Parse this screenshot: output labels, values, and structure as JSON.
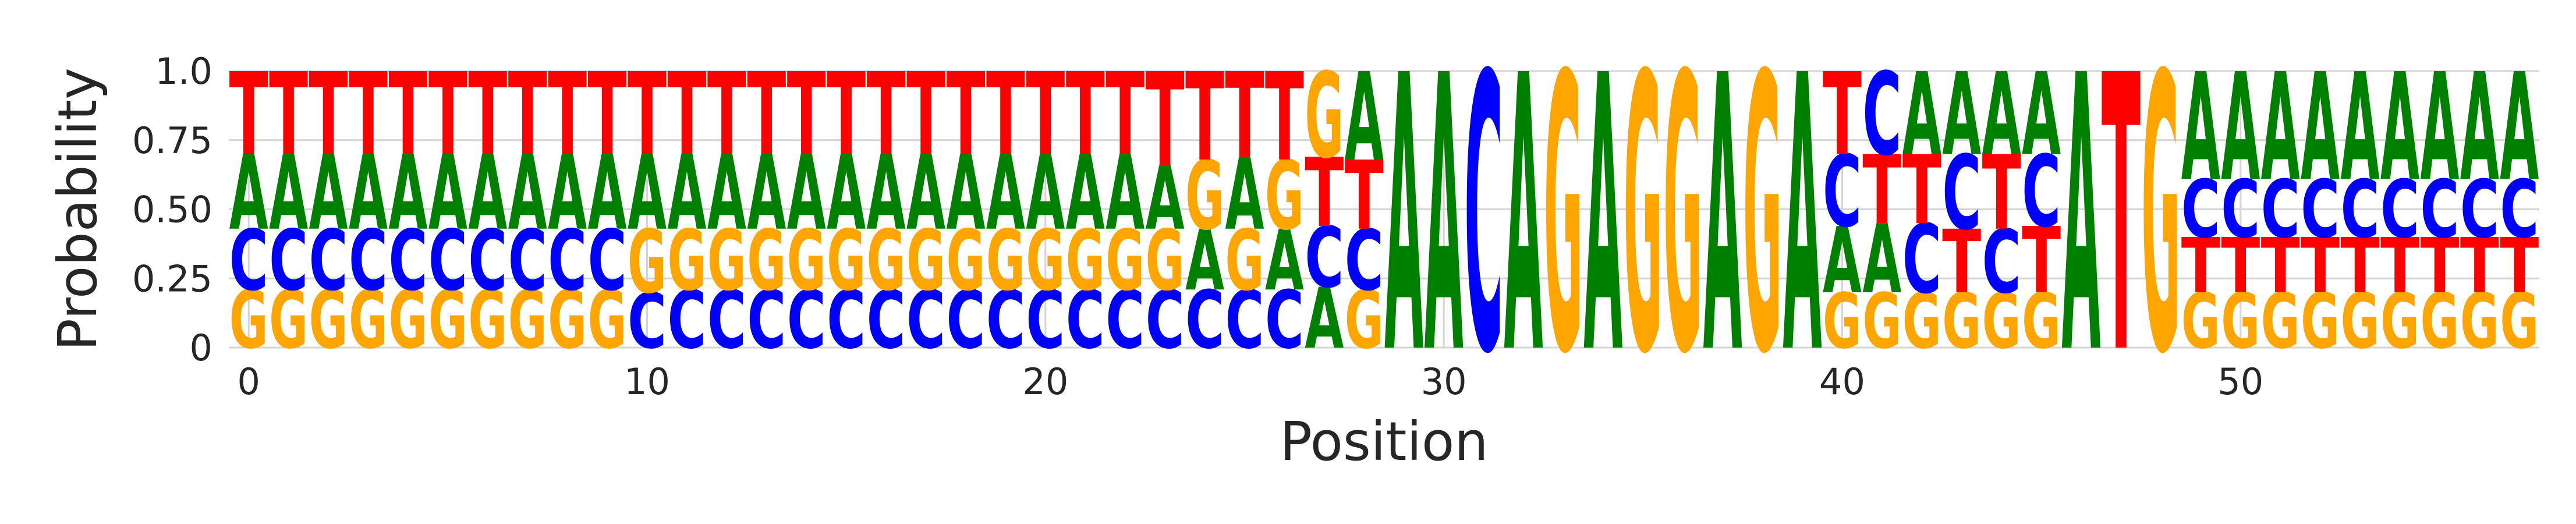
{
  "chart_data": {
    "type": "sequence-logo",
    "title": "",
    "xlabel": "Position",
    "ylabel": "Probability",
    "ylim": [
      0,
      1.0
    ],
    "xlim": [
      -0.5,
      57.5
    ],
    "yticks": [
      0,
      0.25,
      0.5,
      0.75,
      1.0
    ],
    "ytick_labels": [
      "0",
      "0.25",
      "0.50",
      "0.75",
      "1.0"
    ],
    "xticks": [
      0,
      10,
      20,
      30,
      40,
      50
    ],
    "xtick_labels": [
      "0",
      "10",
      "20",
      "30",
      "40",
      "50"
    ],
    "grid": true,
    "colors": {
      "A": "#008000",
      "C": "#0000ff",
      "G": "#ffa500",
      "T": "#ff0000"
    },
    "stack_order": "ascending probability from bottom",
    "positions": [
      {
        "pos": 0,
        "A": 0.27,
        "C": 0.22,
        "G": 0.21,
        "T": 0.3
      },
      {
        "pos": 1,
        "A": 0.27,
        "C": 0.22,
        "G": 0.21,
        "T": 0.3
      },
      {
        "pos": 2,
        "A": 0.27,
        "C": 0.22,
        "G": 0.21,
        "T": 0.3
      },
      {
        "pos": 3,
        "A": 0.27,
        "C": 0.22,
        "G": 0.21,
        "T": 0.3
      },
      {
        "pos": 4,
        "A": 0.27,
        "C": 0.22,
        "G": 0.21,
        "T": 0.3
      },
      {
        "pos": 5,
        "A": 0.27,
        "C": 0.22,
        "G": 0.21,
        "T": 0.3
      },
      {
        "pos": 6,
        "A": 0.27,
        "C": 0.22,
        "G": 0.21,
        "T": 0.3
      },
      {
        "pos": 7,
        "A": 0.27,
        "C": 0.22,
        "G": 0.21,
        "T": 0.3
      },
      {
        "pos": 8,
        "A": 0.27,
        "C": 0.22,
        "G": 0.21,
        "T": 0.3
      },
      {
        "pos": 9,
        "A": 0.27,
        "C": 0.22,
        "G": 0.21,
        "T": 0.3
      },
      {
        "pos": 10,
        "A": 0.27,
        "C": 0.2,
        "G": 0.23,
        "T": 0.3
      },
      {
        "pos": 11,
        "A": 0.27,
        "C": 0.21,
        "G": 0.22,
        "T": 0.3
      },
      {
        "pos": 12,
        "A": 0.27,
        "C": 0.21,
        "G": 0.22,
        "T": 0.3
      },
      {
        "pos": 13,
        "A": 0.27,
        "C": 0.21,
        "G": 0.22,
        "T": 0.3
      },
      {
        "pos": 14,
        "A": 0.27,
        "C": 0.21,
        "G": 0.22,
        "T": 0.3
      },
      {
        "pos": 15,
        "A": 0.27,
        "C": 0.21,
        "G": 0.22,
        "T": 0.3
      },
      {
        "pos": 16,
        "A": 0.27,
        "C": 0.21,
        "G": 0.22,
        "T": 0.3
      },
      {
        "pos": 17,
        "A": 0.27,
        "C": 0.21,
        "G": 0.22,
        "T": 0.3
      },
      {
        "pos": 18,
        "A": 0.27,
        "C": 0.21,
        "G": 0.22,
        "T": 0.3
      },
      {
        "pos": 19,
        "A": 0.27,
        "C": 0.21,
        "G": 0.22,
        "T": 0.3
      },
      {
        "pos": 20,
        "A": 0.27,
        "C": 0.21,
        "G": 0.22,
        "T": 0.3
      },
      {
        "pos": 21,
        "A": 0.27,
        "C": 0.21,
        "G": 0.22,
        "T": 0.3
      },
      {
        "pos": 22,
        "A": 0.27,
        "C": 0.21,
        "G": 0.22,
        "T": 0.3
      },
      {
        "pos": 23,
        "A": 0.23,
        "C": 0.21,
        "G": 0.22,
        "T": 0.34
      },
      {
        "pos": 24,
        "A": 0.22,
        "C": 0.21,
        "G": 0.25,
        "T": 0.32
      },
      {
        "pos": 25,
        "A": 0.26,
        "C": 0.21,
        "G": 0.22,
        "T": 0.31
      },
      {
        "pos": 26,
        "A": 0.22,
        "C": 0.21,
        "G": 0.25,
        "T": 0.32
      },
      {
        "pos": 27,
        "A": 0.22,
        "C": 0.22,
        "G": 0.31,
        "T": 0.25
      },
      {
        "pos": 28,
        "A": 0.32,
        "C": 0.22,
        "G": 0.21,
        "T": 0.25
      },
      {
        "pos": 29,
        "A": 1.0,
        "C": 0,
        "G": 0,
        "T": 0
      },
      {
        "pos": 30,
        "A": 1.0,
        "C": 0,
        "G": 0,
        "T": 0
      },
      {
        "pos": 31,
        "A": 0,
        "C": 1.0,
        "G": 0,
        "T": 0
      },
      {
        "pos": 32,
        "A": 1.0,
        "C": 0,
        "G": 0,
        "T": 0
      },
      {
        "pos": 33,
        "A": 0,
        "C": 0,
        "G": 1.0,
        "T": 0
      },
      {
        "pos": 34,
        "A": 1.0,
        "C": 0,
        "G": 0,
        "T": 0
      },
      {
        "pos": 35,
        "A": 0,
        "C": 0,
        "G": 1.0,
        "T": 0
      },
      {
        "pos": 36,
        "A": 0,
        "C": 0,
        "G": 1.0,
        "T": 0
      },
      {
        "pos": 37,
        "A": 1.0,
        "C": 0,
        "G": 0,
        "T": 0
      },
      {
        "pos": 38,
        "A": 0,
        "C": 0,
        "G": 1.0,
        "T": 0
      },
      {
        "pos": 39,
        "A": 1.0,
        "C": 0,
        "G": 0,
        "T": 0
      },
      {
        "pos": 40,
        "A": 0.24,
        "C": 0.26,
        "G": 0.2,
        "T": 0.3
      },
      {
        "pos": 41,
        "A": 0.25,
        "C": 0.3,
        "G": 0.2,
        "T": 0.25
      },
      {
        "pos": 42,
        "A": 0.3,
        "C": 0.25,
        "G": 0.2,
        "T": 0.25
      },
      {
        "pos": 43,
        "A": 0.3,
        "C": 0.27,
        "G": 0.2,
        "T": 0.23
      },
      {
        "pos": 44,
        "A": 0.3,
        "C": 0.23,
        "G": 0.2,
        "T": 0.27
      },
      {
        "pos": 45,
        "A": 0.3,
        "C": 0.26,
        "G": 0.2,
        "T": 0.24
      },
      {
        "pos": 46,
        "A": 1.0,
        "C": 0,
        "G": 0,
        "T": 0
      },
      {
        "pos": 47,
        "A": 0,
        "C": 0,
        "G": 0,
        "T": 1.0
      },
      {
        "pos": 48,
        "A": 0,
        "C": 0,
        "G": 1.0,
        "T": 0
      },
      {
        "pos": 49,
        "A": 0.39,
        "C": 0.21,
        "G": 0.2,
        "T": 0.2
      },
      {
        "pos": 50,
        "A": 0.39,
        "C": 0.21,
        "G": 0.2,
        "T": 0.2
      },
      {
        "pos": 51,
        "A": 0.39,
        "C": 0.21,
        "G": 0.2,
        "T": 0.2
      },
      {
        "pos": 52,
        "A": 0.39,
        "C": 0.21,
        "G": 0.2,
        "T": 0.2
      },
      {
        "pos": 53,
        "A": 0.39,
        "C": 0.21,
        "G": 0.2,
        "T": 0.2
      },
      {
        "pos": 54,
        "A": 0.39,
        "C": 0.21,
        "G": 0.2,
        "T": 0.2
      },
      {
        "pos": 55,
        "A": 0.39,
        "C": 0.21,
        "G": 0.2,
        "T": 0.2
      },
      {
        "pos": 56,
        "A": 0.39,
        "C": 0.21,
        "G": 0.2,
        "T": 0.2
      },
      {
        "pos": 57,
        "A": 0.39,
        "C": 0.21,
        "G": 0.2,
        "T": 0.2
      }
    ]
  }
}
